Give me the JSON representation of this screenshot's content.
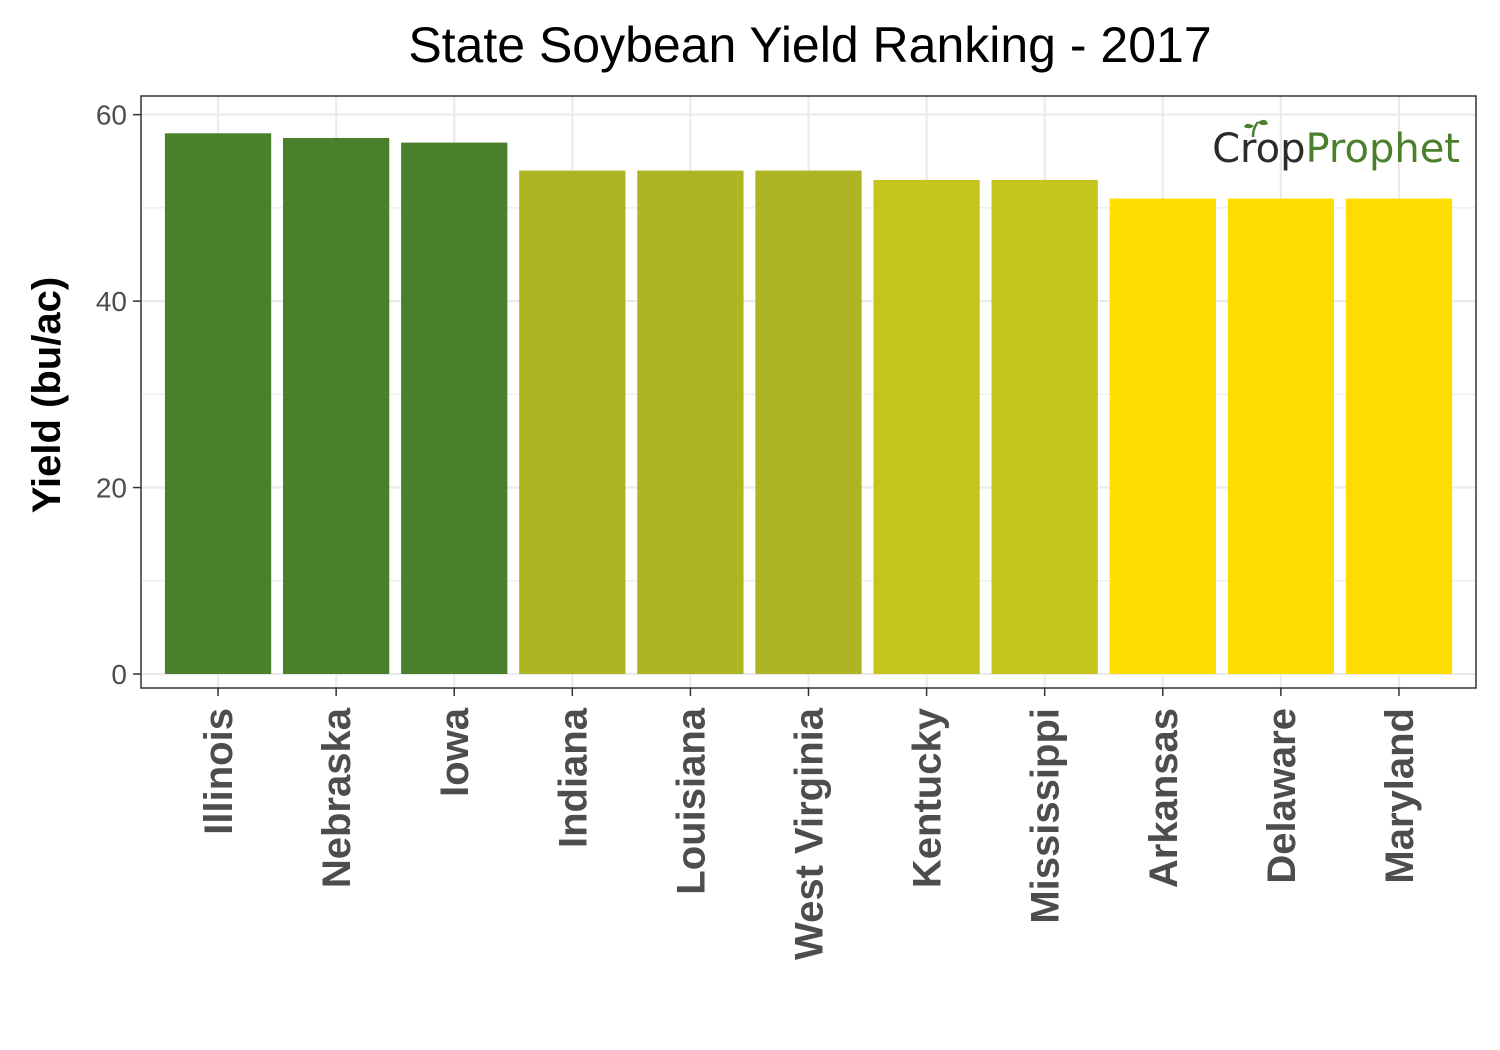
{
  "chart_data": {
    "type": "bar",
    "title": "State Soybean Yield Ranking - 2017",
    "xlabel": "",
    "ylabel": "Yield (bu/ac)",
    "ylim": [
      -1.5,
      62
    ],
    "yticks": [
      0,
      20,
      40,
      60
    ],
    "grid": true,
    "categories": [
      "Illinois",
      "Nebraska",
      "Iowa",
      "Indiana",
      "Louisiana",
      "West Virginia",
      "Kentucky",
      "Mississippi",
      "Arkansas",
      "Delaware",
      "Maryland"
    ],
    "values": [
      58,
      57.5,
      57,
      54,
      54,
      54,
      53,
      53,
      51,
      51,
      51
    ],
    "colors": [
      "#4a7f2c",
      "#4a7f2c",
      "#4a7f2c",
      "#adb524",
      "#adb524",
      "#adb524",
      "#c5c41f",
      "#c5c41f",
      "#ffdd00",
      "#ffdd00",
      "#ffdd00"
    ]
  },
  "logo": {
    "part1": "Cr",
    "part2": "p",
    "part3": "Prophet",
    "color_dark": "#2b2b2b",
    "color_green": "#4a7f2c"
  }
}
